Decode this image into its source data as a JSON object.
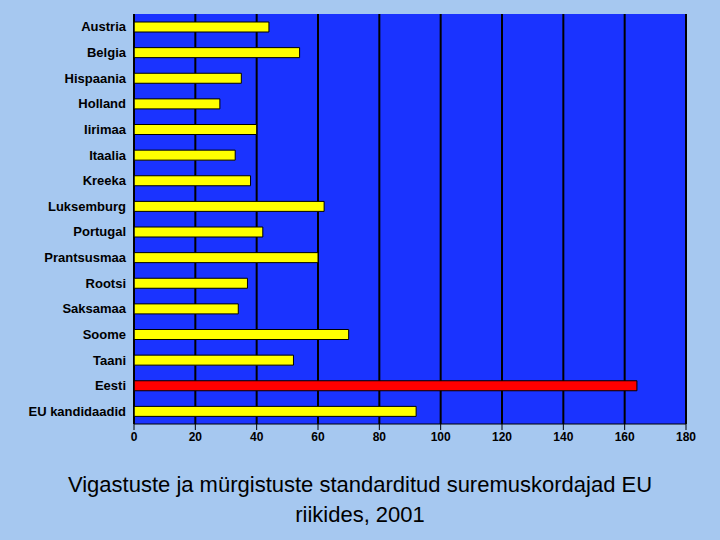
{
  "chart_data": {
    "type": "bar",
    "title": "Vigastuste ja mürgistuste standarditud suremuskordajad EU riikides, 2001",
    "orientation": "horizontal",
    "categories": [
      "Austria",
      "Belgia",
      "Hispaania",
      "Holland",
      "Iirimaa",
      "Itaalia",
      "Kreeka",
      "Luksemburg",
      "Portugal",
      "Prantsusmaa",
      "Rootsi",
      "Saksamaa",
      "Soome",
      "Taani",
      "Eesti",
      "EU kandidaadid"
    ],
    "values": [
      44,
      54,
      35,
      28,
      40,
      33,
      38,
      62,
      42,
      60,
      37,
      34,
      70,
      52,
      164,
      92
    ],
    "colors": [
      "#ffff00",
      "#ffff00",
      "#ffff00",
      "#ffff00",
      "#ffff00",
      "#ffff00",
      "#ffff00",
      "#ffff00",
      "#ffff00",
      "#ffff00",
      "#ffff00",
      "#ffff00",
      "#ffff00",
      "#ffff00",
      "#ff0000",
      "#ffff00"
    ],
    "xlim": [
      0,
      180
    ],
    "xticks": [
      0,
      20,
      40,
      60,
      80,
      100,
      120,
      140,
      160,
      180
    ],
    "grid": true
  }
}
